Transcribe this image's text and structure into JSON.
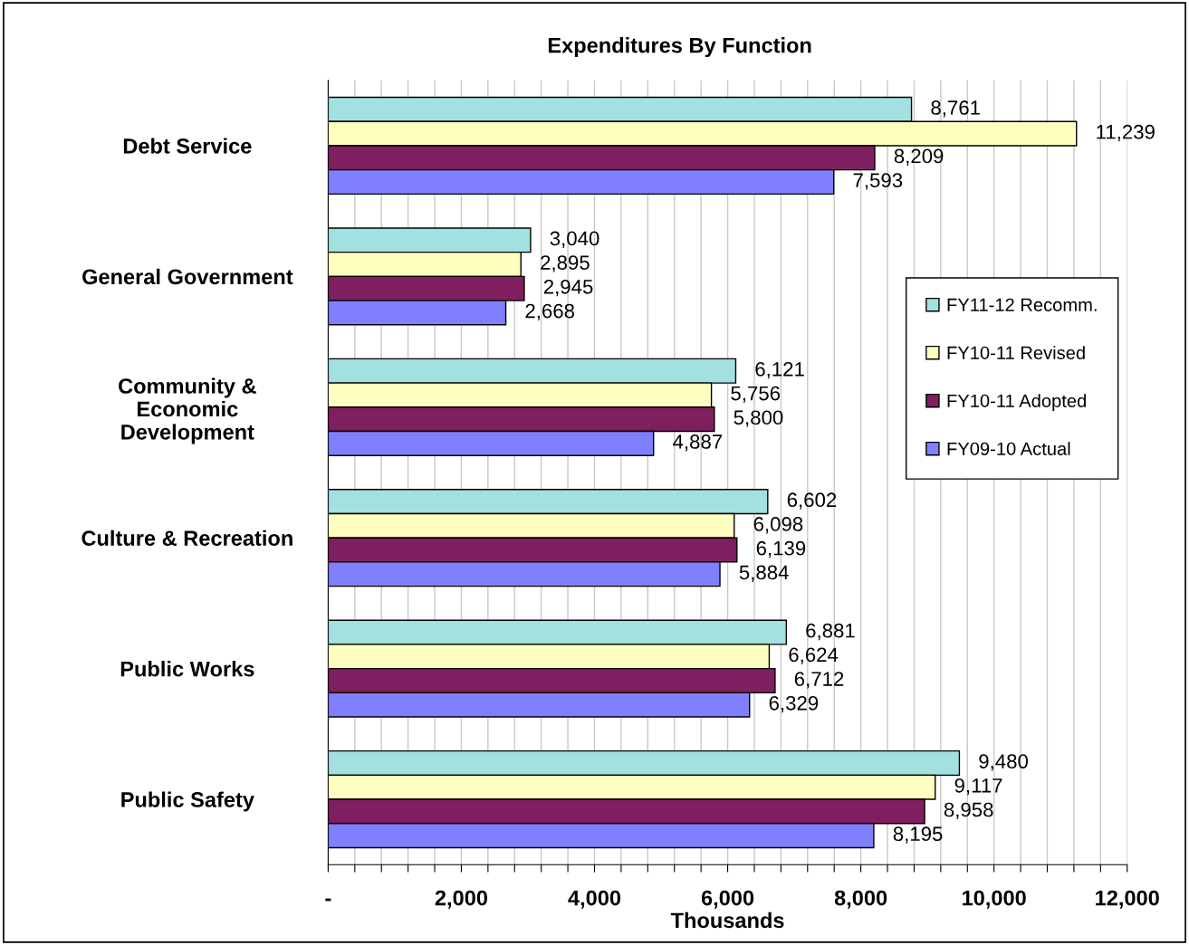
{
  "chart_data": {
    "type": "bar",
    "orientation": "horizontal",
    "title": "Expenditures By Function",
    "xlabel": "Thousands",
    "categories": [
      "Debt Service",
      "General Government",
      "Community &\nEconomic\nDevelopment",
      "Culture & Recreation",
      "Public Works",
      "Public Safety"
    ],
    "series": [
      {
        "name": "FY11-12 Recomm.",
        "color": "#a3e0e0",
        "values": [
          8761,
          3040,
          6121,
          6602,
          6881,
          9480
        ],
        "value_labels": [
          "8,761",
          "3,040",
          "6,121",
          "6,602",
          "6,881",
          "9,480"
        ]
      },
      {
        "name": "FY10-11 Revised",
        "color": "#ffffc0",
        "values": [
          11239,
          2895,
          5756,
          6098,
          6624,
          9117
        ],
        "value_labels": [
          "11,239",
          "2,895",
          "5,756",
          "6,098",
          "6,624",
          "9,117"
        ]
      },
      {
        "name": "FY10-11 Adopted",
        "color": "#7f1f5f",
        "values": [
          8209,
          2945,
          5800,
          6139,
          6712,
          8958
        ],
        "value_labels": [
          "8,209",
          "2,945",
          "5,800",
          "6,139",
          "6,712",
          "8,958"
        ]
      },
      {
        "name": "FY09-10 Actual",
        "color": "#8080ff",
        "values": [
          7593,
          2668,
          4887,
          5884,
          6329,
          8195
        ],
        "value_labels": [
          "7,593",
          "2,668",
          "4,887",
          "5,884",
          "6,329",
          "8,195"
        ]
      }
    ],
    "xlim": [
      0,
      12000
    ],
    "xticks": [
      {
        "value": 0,
        "label": "-"
      },
      {
        "value": 400,
        "label": null
      },
      {
        "value": 800,
        "label": null
      },
      {
        "value": 1200,
        "label": null
      },
      {
        "value": 1600,
        "label": null
      },
      {
        "value": 2000,
        "label": "2,000"
      },
      {
        "value": 2400,
        "label": null
      },
      {
        "value": 2800,
        "label": null
      },
      {
        "value": 3200,
        "label": null
      },
      {
        "value": 3600,
        "label": null
      },
      {
        "value": 4000,
        "label": "4,000"
      },
      {
        "value": 4400,
        "label": null
      },
      {
        "value": 4800,
        "label": null
      },
      {
        "value": 5200,
        "label": null
      },
      {
        "value": 5600,
        "label": null
      },
      {
        "value": 6000,
        "label": "6,000"
      },
      {
        "value": 6400,
        "label": null
      },
      {
        "value": 6800,
        "label": null
      },
      {
        "value": 7200,
        "label": null
      },
      {
        "value": 7600,
        "label": null
      },
      {
        "value": 8000,
        "label": "8,000"
      },
      {
        "value": 8400,
        "label": null
      },
      {
        "value": 8800,
        "label": null
      },
      {
        "value": 9200,
        "label": null
      },
      {
        "value": 9600,
        "label": null
      },
      {
        "value": 10000,
        "label": "10,000"
      },
      {
        "value": 10400,
        "label": null
      },
      {
        "value": 10800,
        "label": null
      },
      {
        "value": 11200,
        "label": null
      },
      {
        "value": 11600,
        "label": null
      },
      {
        "value": 12000,
        "label": "12,000"
      }
    ],
    "grid": "x",
    "legend": "right"
  }
}
